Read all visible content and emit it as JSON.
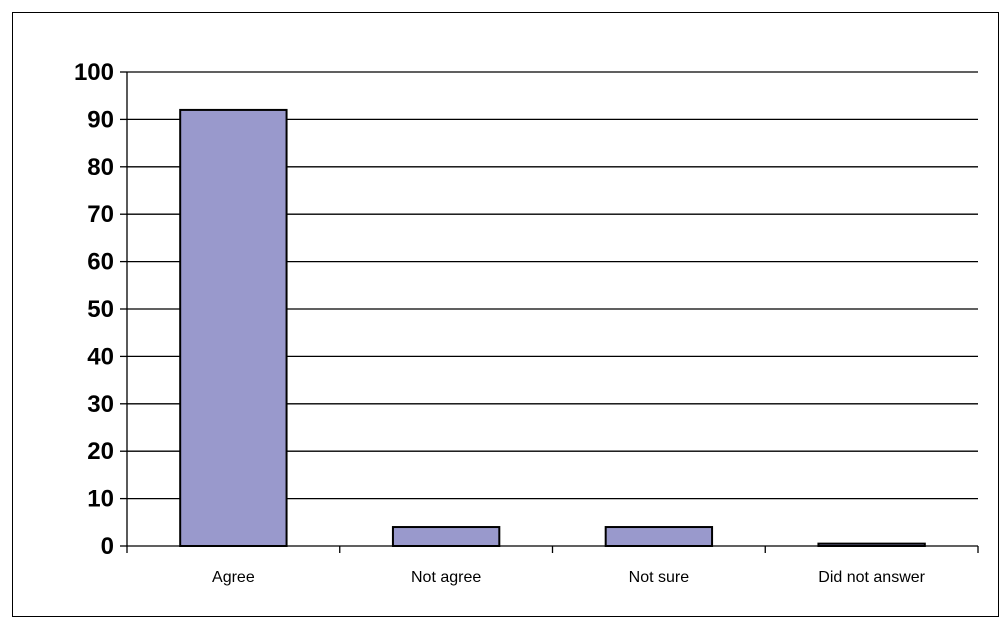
{
  "chart_data": {
    "type": "bar",
    "title": "",
    "xlabel": "",
    "ylabel": "",
    "categories": [
      "Agree",
      "Not agree",
      "Not sure",
      "Did not answer"
    ],
    "values": [
      92,
      4,
      4,
      0.5
    ],
    "ylim": [
      0,
      100
    ],
    "yticks": [
      "0",
      "10",
      "20",
      "30",
      "40",
      "50",
      "60",
      "70",
      "80",
      "90",
      "100"
    ],
    "grid": true,
    "legend": "none",
    "colors": {
      "bar_fill": "#9999cc",
      "bar_stroke": "#000000",
      "grid": "#000000"
    }
  }
}
